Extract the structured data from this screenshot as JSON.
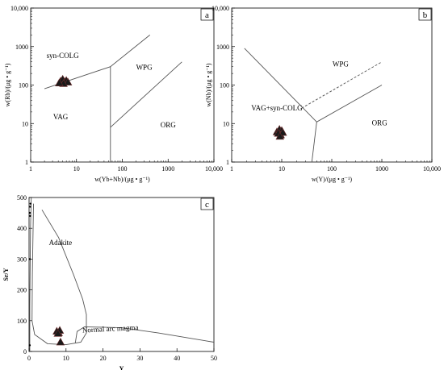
{
  "chart_data": [
    {
      "panel": "a",
      "type": "scatter",
      "xlabel": "w(Yb+Nb)/(μg • g⁻¹)",
      "ylabel": "w(Rb)/(μg • g⁻¹)",
      "xscale": "log",
      "yscale": "log",
      "xlim": [
        1,
        10000
      ],
      "ylim": [
        1,
        10000
      ],
      "x_ticks": [
        {
          "value": 1,
          "label": "1"
        },
        {
          "value": 10,
          "label": "10"
        },
        {
          "value": 100,
          "label": "100"
        },
        {
          "value": 1000,
          "label": "1000"
        },
        {
          "value": 10000,
          "label": "10,000"
        }
      ],
      "y_ticks": [
        {
          "value": 1,
          "label": "1"
        },
        {
          "value": 10,
          "label": "10"
        },
        {
          "value": 100,
          "label": "100"
        },
        {
          "value": 1000,
          "label": "1000"
        },
        {
          "value": 10000,
          "label": "10,000"
        }
      ],
      "fields": [
        {
          "label": "syn-COLG",
          "x": 5,
          "y": 500
        },
        {
          "label": "WPG",
          "x": 300,
          "y": 250
        },
        {
          "label": "VAG",
          "x": 4.5,
          "y": 13
        },
        {
          "label": "ORG",
          "x": 1000,
          "y": 8
        }
      ],
      "boundaries": [
        [
          [
            2,
            80
          ],
          [
            55,
            300
          ],
          [
            400,
            2000
          ]
        ],
        [
          [
            55,
            300
          ],
          [
            55,
            1
          ]
        ],
        [
          [
            55,
            8
          ],
          [
            2000,
            400
          ]
        ]
      ],
      "points": [
        [
          4.5,
          125
        ],
        [
          5,
          140
        ],
        [
          5.5,
          120
        ],
        [
          6,
          130
        ],
        [
          6.5,
          118
        ],
        [
          5.2,
          108
        ],
        [
          4.2,
          112
        ]
      ],
      "marker": "triangle"
    },
    {
      "panel": "b",
      "type": "scatter",
      "xlabel": "w(Y)/(μg • g⁻¹)",
      "ylabel": "w(Nb)/(μg • g⁻¹)",
      "xscale": "log",
      "yscale": "log",
      "xlim": [
        1,
        10000
      ],
      "ylim": [
        1,
        10000
      ],
      "x_ticks": [
        {
          "value": 1,
          "label": "1"
        },
        {
          "value": 10,
          "label": "10"
        },
        {
          "value": 100,
          "label": "100"
        },
        {
          "value": 1000,
          "label": "1000"
        },
        {
          "value": 10000,
          "label": "10,000"
        }
      ],
      "y_ticks": [
        {
          "value": 1,
          "label": "1"
        },
        {
          "value": 10,
          "label": "10"
        },
        {
          "value": 100,
          "label": "100"
        },
        {
          "value": 1000,
          "label": "1000"
        },
        {
          "value": 10000,
          "label": "10,000"
        }
      ],
      "fields": [
        {
          "label": "WPG",
          "x": 150,
          "y": 300
        },
        {
          "label": "VAG+syn-COLG",
          "x": 8,
          "y": 22
        },
        {
          "label": "ORG",
          "x": 900,
          "y": 9
        }
      ],
      "boundaries": [
        [
          [
            1.8,
            900
          ],
          [
            50,
            11
          ],
          [
            1000,
            100
          ]
        ],
        [
          [
            50,
            11
          ],
          [
            40,
            1
          ]
        ]
      ],
      "dashed_boundaries": [
        [
          [
            25,
            25
          ],
          [
            1000,
            400
          ]
        ]
      ],
      "points": [
        [
          8,
          6
        ],
        [
          9,
          7
        ],
        [
          10,
          6.5
        ],
        [
          9.5,
          5
        ],
        [
          8.5,
          5.5
        ],
        [
          10.5,
          5.8
        ],
        [
          9.2,
          4.6
        ]
      ],
      "marker": "triangle"
    },
    {
      "panel": "c",
      "type": "scatter",
      "xlabel": "Y",
      "ylabel": "Sr/Y",
      "xlim": [
        0,
        50
      ],
      "ylim": [
        0,
        500
      ],
      "x_ticks": [
        {
          "value": 0,
          "label": "0"
        },
        {
          "value": 10,
          "label": "10"
        },
        {
          "value": 20,
          "label": "20"
        },
        {
          "value": 30,
          "label": "30"
        },
        {
          "value": 40,
          "label": "40"
        },
        {
          "value": 50,
          "label": "50"
        }
      ],
      "y_ticks": [
        {
          "value": 0,
          "label": "0"
        },
        {
          "value": 100,
          "label": "100"
        },
        {
          "value": 200,
          "label": "200"
        },
        {
          "value": 300,
          "label": "300"
        },
        {
          "value": 400,
          "label": "400"
        },
        {
          "value": 500,
          "label": "500"
        }
      ],
      "fields": [
        {
          "label": "Adakite",
          "x": 8.5,
          "y": 345
        },
        {
          "label": "Normal arc magma",
          "x": 22,
          "y": 66
        }
      ],
      "boundaries": [
        [
          [
            3.5,
            460
          ],
          [
            8,
            370
          ],
          [
            12,
            250
          ],
          [
            14.5,
            170
          ],
          [
            15.5,
            120
          ],
          [
            15.5,
            60
          ],
          [
            14,
            30
          ],
          [
            10,
            22
          ],
          [
            5,
            25
          ],
          [
            1.5,
            55
          ],
          [
            0.8,
            100
          ],
          [
            0.9,
            250
          ],
          [
            1.2,
            480
          ]
        ],
        [
          [
            12.5,
            28
          ],
          [
            13,
            65
          ],
          [
            15,
            80
          ],
          [
            25,
            77
          ],
          [
            35,
            60
          ],
          [
            45,
            40
          ],
          [
            50,
            30
          ]
        ],
        [
          [
            0.2,
            0
          ],
          [
            0.2,
            150
          ],
          [
            0.4,
            400
          ],
          [
            0.6,
            500
          ]
        ]
      ],
      "points": [
        [
          7.5,
          65
        ],
        [
          8,
          60
        ],
        [
          8.3,
          68
        ],
        [
          7.8,
          58
        ],
        [
          8.5,
          30
        ]
      ],
      "marker": "triangle",
      "small_points": [
        [
          0.2,
          20
        ],
        [
          0.3,
          440
        ],
        [
          0.2,
          450
        ],
        [
          0.4,
          480
        ],
        [
          0.3,
          470
        ],
        [
          0.2,
          300
        ]
      ]
    }
  ]
}
